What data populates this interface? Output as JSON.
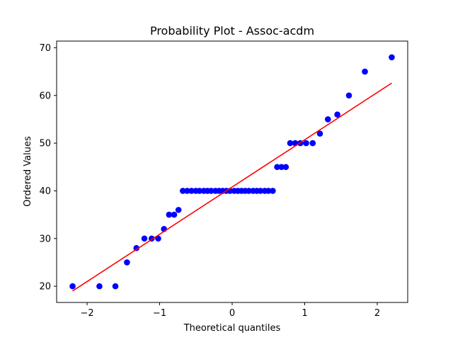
{
  "chart_data": {
    "type": "scatter",
    "title": "Probability Plot - Assoc-acdm",
    "xlabel": "Theoretical quantiles",
    "ylabel": "Ordered Values",
    "xlim": [
      -2.42,
      2.42
    ],
    "ylim": [
      16.6,
      71.4
    ],
    "xticks": [
      -2,
      -1,
      0,
      1,
      2
    ],
    "xtick_labels": [
      "−2",
      "−1",
      "0",
      "1",
      "2"
    ],
    "yticks": [
      20,
      30,
      40,
      50,
      60,
      70
    ],
    "ytick_labels": [
      "20",
      "30",
      "40",
      "50",
      "60",
      "70"
    ],
    "grid": false,
    "legend": "none",
    "series": [
      {
        "kind": "points",
        "color": "#0000ff",
        "x": [
          -2.2,
          -1.83,
          -1.61,
          -1.45,
          -1.32,
          -1.21,
          -1.11,
          -1.02,
          -0.94,
          -0.87,
          -0.8,
          -0.74,
          -0.68,
          -0.62,
          -0.56,
          -0.5,
          -0.45,
          -0.39,
          -0.34,
          -0.29,
          -0.23,
          -0.18,
          -0.13,
          -0.08,
          -0.03,
          0.03,
          0.08,
          0.13,
          0.18,
          0.23,
          0.29,
          0.34,
          0.39,
          0.45,
          0.5,
          0.56,
          0.62,
          0.68,
          0.74,
          0.8,
          0.87,
          0.94,
          1.02,
          1.11,
          1.21,
          1.32,
          1.45,
          1.61,
          1.83,
          2.2
        ],
        "y": [
          20,
          20,
          20,
          25,
          28,
          30,
          30,
          30,
          32,
          35,
          35,
          36,
          40,
          40,
          40,
          40,
          40,
          40,
          40,
          40,
          40,
          40,
          40,
          40,
          40,
          40,
          40,
          40,
          40,
          40,
          40,
          40,
          40,
          40,
          40,
          40,
          45,
          45,
          45,
          50,
          50,
          50,
          50,
          50,
          52,
          55,
          56,
          60,
          65,
          68
        ]
      },
      {
        "kind": "fit-line",
        "color": "#ff0000",
        "x": [
          -2.2,
          2.2
        ],
        "y": [
          19,
          62.6
        ]
      }
    ]
  }
}
